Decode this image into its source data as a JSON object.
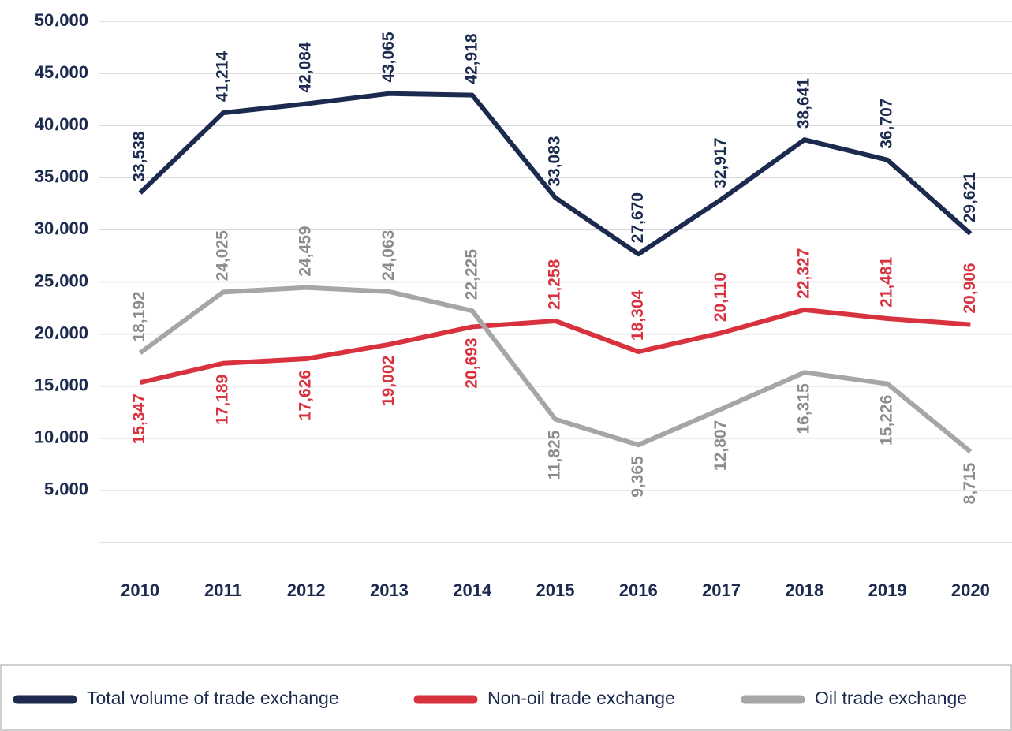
{
  "chart_data": {
    "type": "line",
    "categories": [
      "2010",
      "2011",
      "2012",
      "2013",
      "2014",
      "2015",
      "2016",
      "2017",
      "2018",
      "2019",
      "2020"
    ],
    "series": [
      {
        "name": "Total volume of trade exchange",
        "color": "#1b2a4e",
        "label_color": "#1b2a4e",
        "values": [
          33538,
          41214,
          42084,
          43065,
          42918,
          33083,
          27670,
          32917,
          38641,
          36707,
          29621
        ],
        "value_labels": [
          "33,538",
          "41,214",
          "42,084",
          "43,065",
          "42,918",
          "33,083",
          "27,670",
          "32,917",
          "38,641",
          "36,707",
          "29,621"
        ]
      },
      {
        "name": "Non-oil trade exchange",
        "color": "#d9323f",
        "label_color": "#d9323f",
        "values": [
          15347,
          17189,
          17626,
          19002,
          20693,
          21258,
          18304,
          20110,
          22327,
          21481,
          20906
        ],
        "value_labels": [
          "15,347",
          "17,189",
          "17,626",
          "19,002",
          "20,693",
          "21,258",
          "18,304",
          "20,110",
          "22,327",
          "21,481",
          "20,906"
        ]
      },
      {
        "name": "Oil trade exchange",
        "color": "#a6a6a6",
        "label_color": "#8c8c8c",
        "values": [
          18192,
          24025,
          24459,
          24063,
          22225,
          11825,
          9365,
          12807,
          16315,
          15226,
          8715
        ],
        "value_labels": [
          "18,192",
          "24,025",
          "24,459",
          "24,063",
          "22,225",
          "11,825",
          "9,365",
          "12,807",
          "16,315",
          "15,226",
          "8,715"
        ]
      }
    ],
    "ylim": [
      0,
      50000
    ],
    "yticks": [
      {
        "value": 5000,
        "label": "5،000"
      },
      {
        "value": 10000,
        "label": "10،000"
      },
      {
        "value": 15000,
        "label": "15،000"
      },
      {
        "value": 20000,
        "label": "20،000"
      },
      {
        "value": 25000,
        "label": "25،000"
      },
      {
        "value": 30000,
        "label": "30،000"
      },
      {
        "value": 35000,
        "label": "35،000"
      },
      {
        "value": 40000,
        "label": "40،000"
      },
      {
        "value": 45000,
        "label": "45،000"
      },
      {
        "value": 50000,
        "label": "50،000"
      }
    ],
    "grid": true
  }
}
